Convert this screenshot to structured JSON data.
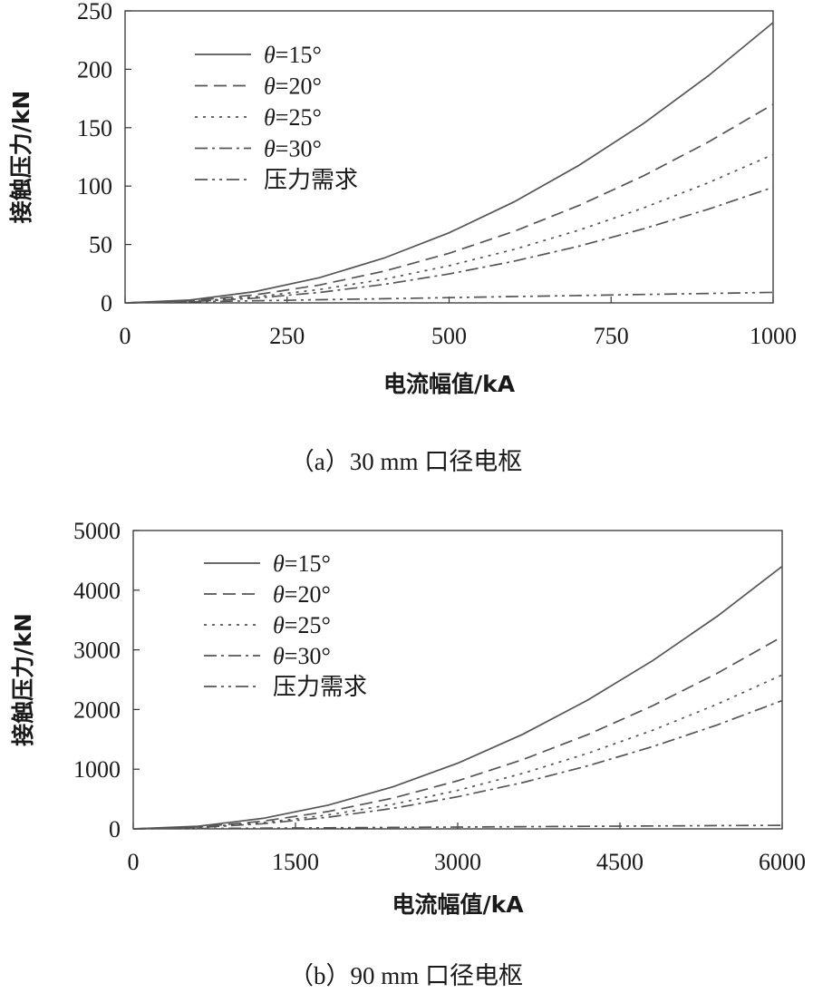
{
  "chart_data": [
    {
      "type": "line",
      "caption": "（a）30 mm 口径电枢",
      "xlabel": "电流幅值/kA",
      "ylabel": "接触压力/kN",
      "xlim": [
        0,
        1000
      ],
      "ylim": [
        0,
        250
      ],
      "xticks": [
        0,
        250,
        500,
        750,
        1000
      ],
      "yticks": [
        0,
        50,
        100,
        150,
        200,
        250
      ],
      "x": [
        0,
        100,
        200,
        300,
        400,
        500,
        600,
        700,
        800,
        900,
        1000
      ],
      "grid": false,
      "legend_position": "top-left",
      "series": [
        {
          "name": "θ=15°",
          "symbol": "θ",
          "rest": "=15°",
          "dash": "solid",
          "color": "#555555",
          "values": [
            0,
            2.4,
            9.6,
            21.6,
            38.4,
            60,
            86.4,
            117.6,
            153.6,
            194.4,
            240
          ]
        },
        {
          "name": "θ=20°",
          "symbol": "θ",
          "rest": "=20°",
          "dash": "dashed",
          "color": "#555555",
          "values": [
            0,
            1.7,
            6.8,
            15.3,
            27.2,
            42.5,
            61.2,
            83.3,
            108.8,
            137.7,
            170
          ]
        },
        {
          "name": "θ=25°",
          "symbol": "θ",
          "rest": "=25°",
          "dash": "dotted",
          "color": "#555555",
          "values": [
            0,
            1.3,
            5.1,
            11.4,
            20.3,
            31.8,
            45.7,
            62.2,
            81.3,
            102.9,
            127
          ]
        },
        {
          "name": "θ=30°",
          "symbol": "θ",
          "rest": "=30°",
          "dash": "dashdot",
          "color": "#555555",
          "values": [
            0,
            1.0,
            4.0,
            8.9,
            15.8,
            24.8,
            35.6,
            48.5,
            63.4,
            80.2,
            99
          ]
        },
        {
          "name": "压力需求",
          "symbol": "",
          "rest": "压力需求",
          "dash": "dashdotdot",
          "color": "#555555",
          "values": [
            0,
            0.9,
            1.8,
            2.7,
            3.6,
            4.5,
            5.4,
            6.3,
            7.2,
            8.1,
            9
          ]
        }
      ]
    },
    {
      "type": "line",
      "caption": "（b）90 mm 口径电枢",
      "xlabel": "电流幅值/kA",
      "ylabel": "接触压力/kN",
      "xlim": [
        0,
        6000
      ],
      "ylim": [
        0,
        5000
      ],
      "xticks": [
        0,
        1500,
        3000,
        4500,
        6000
      ],
      "yticks": [
        0,
        1000,
        2000,
        3000,
        4000,
        5000
      ],
      "x": [
        0,
        600,
        1200,
        1800,
        2400,
        3000,
        3600,
        4200,
        4800,
        5400,
        6000
      ],
      "grid": false,
      "legend_position": "top-left",
      "series": [
        {
          "name": "θ=15°",
          "symbol": "θ",
          "rest": "=15°",
          "dash": "solid",
          "color": "#555555",
          "values": [
            0,
            44,
            176,
            396,
            704,
            1100,
            1584,
            2156,
            2816,
            3564,
            4400
          ]
        },
        {
          "name": "θ=20°",
          "symbol": "θ",
          "rest": "=20°",
          "dash": "dashed",
          "color": "#555555",
          "values": [
            0,
            32,
            129,
            290,
            515,
            805,
            1159,
            1577,
            2061,
            2608,
            3220
          ]
        },
        {
          "name": "θ=25°",
          "symbol": "θ",
          "rest": "=25°",
          "dash": "dotted",
          "color": "#555555",
          "values": [
            0,
            26,
            103,
            232,
            412,
            645,
            929,
            1264,
            1651,
            2090,
            2580
          ]
        },
        {
          "name": "θ=30°",
          "symbol": "θ",
          "rest": "=30°",
          "dash": "dashdot",
          "color": "#555555",
          "values": [
            0,
            21,
            86,
            194,
            344,
            538,
            775,
            1054,
            1377,
            1742,
            2150
          ]
        },
        {
          "name": "压力需求",
          "symbol": "",
          "rest": "压力需求",
          "dash": "dashdotdot",
          "color": "#555555",
          "values": [
            0,
            6,
            12,
            18,
            24,
            30,
            36,
            42,
            48,
            54,
            60
          ]
        }
      ]
    }
  ]
}
